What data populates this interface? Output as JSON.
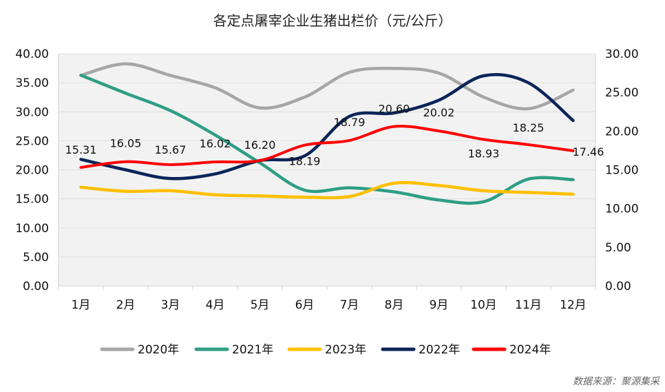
{
  "chart_data": {
    "type": "line",
    "title": "各定点屠宰企业生猪出栏价（元/公斤）",
    "categories": [
      "1月",
      "2月",
      "3月",
      "4月",
      "5月",
      "6月",
      "7月",
      "8月",
      "9月",
      "10月",
      "11月",
      "12月"
    ],
    "y_left": {
      "ylim": [
        0,
        40
      ],
      "ticks": [
        "0.00",
        "5.00",
        "10.00",
        "15.00",
        "20.00",
        "25.00",
        "30.00",
        "35.00",
        "40.00"
      ]
    },
    "y_right": {
      "ylim": [
        0,
        30
      ],
      "ticks": [
        "0.00",
        "5.00",
        "10.00",
        "15.00",
        "20.00",
        "25.00",
        "30.00"
      ]
    },
    "series": [
      {
        "name": "2020年",
        "color": "#a6a6a6",
        "axis": "right",
        "values": [
          27.2,
          28.7,
          27.2,
          25.6,
          23.0,
          24.4,
          27.6,
          28.1,
          27.5,
          24.4,
          22.9,
          25.3
        ]
      },
      {
        "name": "2021年",
        "color": "#2e9e85",
        "axis": "left",
        "values": [
          36.3,
          33.2,
          30.2,
          26.0,
          21.2,
          16.5,
          16.9,
          16.2,
          14.8,
          14.5,
          18.4,
          18.3
        ]
      },
      {
        "name": "2023年",
        "color": "#ffc000",
        "axis": "left",
        "values": [
          17.0,
          16.3,
          16.4,
          15.7,
          15.5,
          15.3,
          15.4,
          17.7,
          17.3,
          16.4,
          16.1,
          15.8
        ]
      },
      {
        "name": "2022年",
        "color": "#0b2559",
        "axis": "left",
        "values": [
          21.8,
          20.0,
          18.5,
          19.3,
          21.6,
          22.4,
          29.2,
          29.8,
          32.0,
          36.2,
          35.0,
          28.5
        ]
      },
      {
        "name": "2024年",
        "color": "#ff0000",
        "axis": "right",
        "values": [
          15.31,
          16.05,
          15.67,
          16.02,
          16.2,
          18.19,
          18.79,
          20.6,
          20.02,
          18.93,
          18.25,
          17.46
        ],
        "labels": [
          "15.31",
          "16.05",
          "15.67",
          "16.02",
          "16.20",
          "18.19",
          "18.79",
          "20.60",
          "20.02",
          "18.93",
          "18.25",
          "17.46"
        ]
      }
    ],
    "legend_order": [
      "2020年",
      "2021年",
      "2023年",
      "2022年",
      "2024年"
    ],
    "legend_position": "bottom",
    "grid": true
  },
  "source_note": "数据来源：聚源集采"
}
